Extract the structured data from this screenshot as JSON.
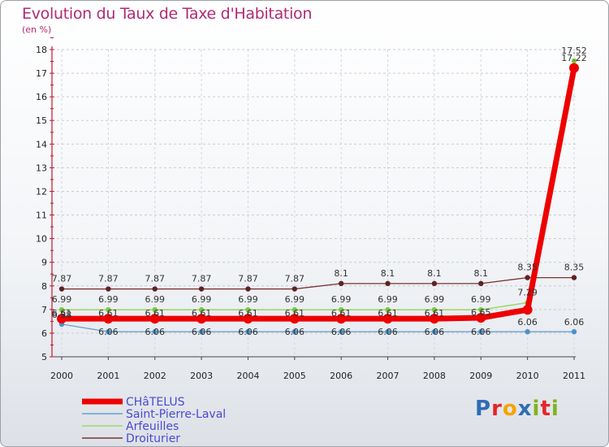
{
  "header": {
    "title": "Evolution du Taux de Taxe d'Habitation",
    "unit": "(en %)"
  },
  "logo": {
    "text": "Proxiti",
    "letters": [
      "P",
      "r",
      "o",
      "x",
      "i",
      "t",
      "i"
    ],
    "colors": [
      "#2f6db5",
      "#e3262a",
      "#f5a400",
      "#2f6db5",
      "#7fb31d",
      "#e3262a",
      "#7fb31d"
    ]
  },
  "chart_data": {
    "type": "line",
    "title": "Evolution du Taux de Taxe d'Habitation",
    "ylabel": "(en %)",
    "xlabel": "",
    "ylim": [
      5,
      18
    ],
    "y_ticks": [
      5,
      6,
      7,
      8,
      9,
      10,
      11,
      12,
      13,
      14,
      15,
      16,
      17,
      18
    ],
    "x": [
      "2000",
      "2001",
      "2002",
      "2003",
      "2004",
      "2005",
      "2006",
      "2007",
      "2008",
      "2009",
      "2010",
      "2011"
    ],
    "series": [
      {
        "name": "CHâTELUS",
        "color": "#ee0000",
        "values": [
          6.61,
          6.61,
          6.61,
          6.61,
          6.61,
          6.61,
          6.61,
          6.61,
          6.61,
          6.65,
          6.99,
          17.22
        ]
      },
      {
        "name": "Saint-Pierre-Laval",
        "color": "#5c97c8",
        "values": [
          6.38,
          6.06,
          6.06,
          6.06,
          6.06,
          6.06,
          6.06,
          6.06,
          6.06,
          6.06,
          6.06,
          6.06
        ]
      },
      {
        "name": "Arfeuilles",
        "color": "#8fd14f",
        "values": [
          6.99,
          6.99,
          6.99,
          6.99,
          6.99,
          6.99,
          6.99,
          6.99,
          6.99,
          6.99,
          7.29,
          17.52
        ]
      },
      {
        "name": "Droiturier",
        "color": "#6b2a2a",
        "values": [
          7.87,
          7.87,
          7.87,
          7.87,
          7.87,
          7.87,
          8.1,
          8.1,
          8.1,
          8.1,
          8.35,
          8.35
        ]
      }
    ],
    "data_labels": [
      {
        "series": "Droiturier",
        "labels": [
          "7.87",
          "7.87",
          "7.87",
          "7.87",
          "7.87",
          "7.87",
          "8.1",
          "8.1",
          "8.1",
          "8.1",
          "8.35",
          "8.35"
        ]
      },
      {
        "series": "Arfeuilles",
        "labels": [
          "6.99",
          "6.99",
          "6.99",
          "6.99",
          "6.99",
          "6.99",
          "6.99",
          "6.99",
          "6.99",
          "6.99",
          "7.29",
          "17.52"
        ]
      },
      {
        "series": "CHâTELUS",
        "labels": [
          "6.61",
          "6.61",
          "6.61",
          "6.61",
          "6.61",
          "6.61",
          "6.61",
          "6.61",
          "6.61",
          "6.65",
          "",
          "17.22"
        ]
      },
      {
        "series": "Saint-Pierre-Laval",
        "labels": [
          "6.38",
          "6.06",
          "6.06",
          "6.06",
          "6.06",
          "6.06",
          "6.06",
          "6.06",
          "6.06",
          "6.06",
          "6.06",
          "6.06"
        ]
      }
    ],
    "legend_position": "bottom-left"
  }
}
